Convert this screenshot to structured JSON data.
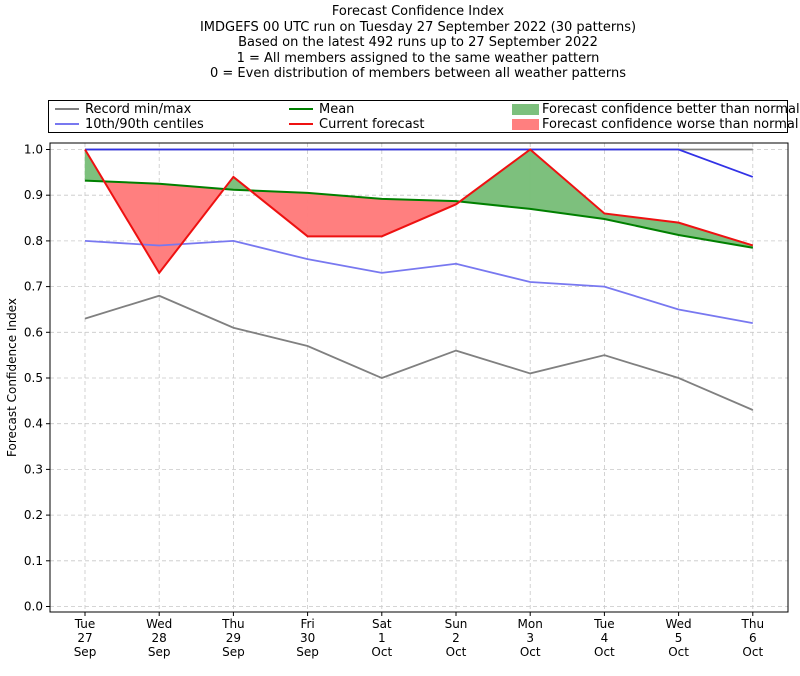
{
  "title_lines": [
    "Forecast Confidence Index",
    "IMDGEFS 00 UTC run on Tuesday 27 September 2022 (30 patterns)",
    "Based on the latest 492 runs up to 27 September 2022",
    "1 = All members assigned to the same weather pattern",
    "0 = Even distribution of members between all weather patterns"
  ],
  "legend": {
    "record": "Record min/max",
    "centiles": "10th/90th centiles",
    "mean": "Mean",
    "current": "Current forecast",
    "better": "Forecast confidence better than normal",
    "worse": "Forecast confidence worse than normal"
  },
  "colors": {
    "record": "#808080",
    "centiles": "#7878f0",
    "centile_upper": "#3232e6",
    "mean": "#008000",
    "current": "#ee1111",
    "better_fill": "#7dc07d",
    "worse_fill": "#ff7f7f"
  },
  "chart_data": {
    "type": "line",
    "title": "Forecast Confidence Index",
    "xlabel": "",
    "ylabel": "Forecast Confidence Index",
    "ylim": [
      0,
      1.0
    ],
    "yticks": [
      "0.0",
      "0.1",
      "0.2",
      "0.3",
      "0.4",
      "0.5",
      "0.6",
      "0.7",
      "0.8",
      "0.9",
      "1.0"
    ],
    "grid": true,
    "legend_position": "top",
    "x_labels": [
      [
        "Tue",
        "27",
        "Sep"
      ],
      [
        "Wed",
        "28",
        "Sep"
      ],
      [
        "Thu",
        "29",
        "Sep"
      ],
      [
        "Fri",
        "30",
        "Sep"
      ],
      [
        "Sat",
        "1",
        "Oct"
      ],
      [
        "Sun",
        "2",
        "Oct"
      ],
      [
        "Mon",
        "3",
        "Oct"
      ],
      [
        "Tue",
        "4",
        "Oct"
      ],
      [
        "Wed",
        "5",
        "Oct"
      ],
      [
        "Thu",
        "6",
        "Oct"
      ]
    ],
    "series": [
      {
        "name": "Record min/max",
        "key": "record_min",
        "values": [
          0.63,
          0.68,
          0.61,
          0.57,
          0.5,
          0.56,
          0.51,
          0.55,
          0.5,
          0.43
        ]
      },
      {
        "name": "Record min/max",
        "key": "record_max",
        "values": [
          1.0,
          1.0,
          1.0,
          1.0,
          1.0,
          1.0,
          1.0,
          1.0,
          1.0,
          1.0
        ]
      },
      {
        "name": "10th/90th centiles",
        "key": "p10",
        "values": [
          0.8,
          0.79,
          0.8,
          0.76,
          0.73,
          0.75,
          0.71,
          0.7,
          0.65,
          0.62
        ]
      },
      {
        "name": "10th/90th centiles",
        "key": "p90",
        "values": [
          1.0,
          1.0,
          1.0,
          1.0,
          1.0,
          1.0,
          1.0,
          1.0,
          1.0,
          0.94
        ]
      },
      {
        "name": "Mean",
        "key": "mean",
        "values": [
          0.932,
          0.925,
          0.912,
          0.905,
          0.892,
          0.887,
          0.87,
          0.848,
          0.813,
          0.785
        ]
      },
      {
        "name": "Current forecast",
        "key": "current",
        "values": [
          1.0,
          0.73,
          0.94,
          0.81,
          0.81,
          0.88,
          1.0,
          0.86,
          0.84,
          0.79
        ]
      }
    ]
  }
}
